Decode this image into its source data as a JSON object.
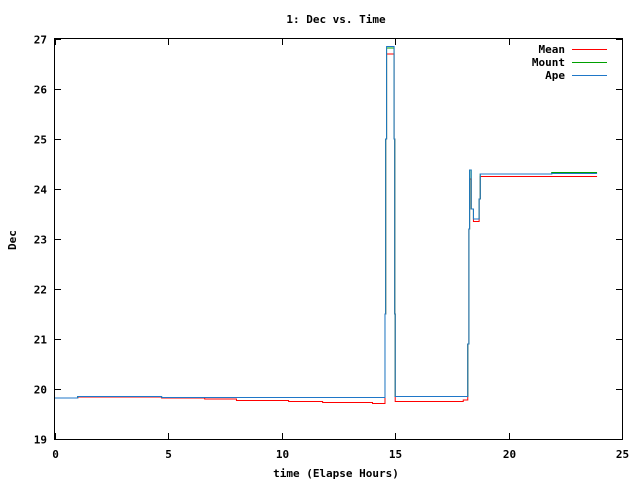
{
  "chart_data": {
    "type": "line",
    "title": "1: Dec vs. Time",
    "xlabel": "time (Elapse Hours)",
    "ylabel": "Dec",
    "xlim": [
      0,
      25
    ],
    "ylim": [
      19,
      27
    ],
    "x_ticks": [
      0,
      5,
      10,
      15,
      20,
      25
    ],
    "y_ticks": [
      19,
      20,
      21,
      22,
      23,
      24,
      25,
      26,
      27
    ],
    "x_tick_labels": [
      "0",
      "5",
      "10",
      "15",
      "20",
      "25"
    ],
    "y_tick_labels": [
      "19",
      "20",
      "21",
      "22",
      "23",
      "24",
      "25",
      "26",
      "27"
    ],
    "grid": false,
    "legend_position": "top-right",
    "series": [
      {
        "name": "Mean",
        "color": "#ff0000",
        "points": [
          [
            0,
            19.82
          ],
          [
            1.0,
            19.82
          ],
          [
            1.0,
            19.84
          ],
          [
            4.7,
            19.84
          ],
          [
            4.7,
            19.82
          ],
          [
            6.6,
            19.82
          ],
          [
            6.6,
            19.8
          ],
          [
            8.0,
            19.8
          ],
          [
            8.0,
            19.77
          ],
          [
            10.3,
            19.77
          ],
          [
            10.3,
            19.75
          ],
          [
            11.8,
            19.75
          ],
          [
            11.8,
            19.73
          ],
          [
            14.0,
            19.73
          ],
          [
            14.0,
            19.71
          ],
          [
            14.55,
            19.71
          ],
          [
            14.55,
            21.5
          ],
          [
            14.58,
            21.5
          ],
          [
            14.58,
            25.0
          ],
          [
            14.62,
            25.0
          ],
          [
            14.62,
            26.7
          ],
          [
            14.95,
            26.7
          ],
          [
            14.95,
            25.0
          ],
          [
            14.98,
            25.0
          ],
          [
            14.98,
            21.5
          ],
          [
            15.0,
            21.5
          ],
          [
            15.0,
            19.75
          ],
          [
            18.0,
            19.75
          ],
          [
            18.0,
            19.78
          ],
          [
            18.2,
            19.78
          ],
          [
            18.2,
            20.9
          ],
          [
            18.25,
            20.9
          ],
          [
            18.25,
            23.2
          ],
          [
            18.28,
            23.2
          ],
          [
            18.28,
            24.2
          ],
          [
            18.35,
            24.2
          ],
          [
            18.35,
            23.6
          ],
          [
            18.45,
            23.6
          ],
          [
            18.45,
            23.35
          ],
          [
            18.7,
            23.35
          ],
          [
            18.7,
            23.8
          ],
          [
            18.75,
            23.8
          ],
          [
            18.75,
            24.25
          ],
          [
            23.9,
            24.25
          ]
        ]
      },
      {
        "name": "Mount",
        "color": "#00a000",
        "points": [
          [
            0,
            19.82
          ],
          [
            1.0,
            19.82
          ],
          [
            1.0,
            19.85
          ],
          [
            4.7,
            19.85
          ],
          [
            4.7,
            19.83
          ],
          [
            14.55,
            19.83
          ],
          [
            14.55,
            21.5
          ],
          [
            14.58,
            21.5
          ],
          [
            14.58,
            25.0
          ],
          [
            14.62,
            25.0
          ],
          [
            14.62,
            26.82
          ],
          [
            14.95,
            26.82
          ],
          [
            14.95,
            25.0
          ],
          [
            14.98,
            25.0
          ],
          [
            14.98,
            21.5
          ],
          [
            15.0,
            21.5
          ],
          [
            15.0,
            19.85
          ],
          [
            18.2,
            19.85
          ],
          [
            18.2,
            20.9
          ],
          [
            18.25,
            20.9
          ],
          [
            18.25,
            23.2
          ],
          [
            18.28,
            23.2
          ],
          [
            18.28,
            24.38
          ],
          [
            18.35,
            24.38
          ],
          [
            18.35,
            23.6
          ],
          [
            18.45,
            23.6
          ],
          [
            18.45,
            23.4
          ],
          [
            18.7,
            23.4
          ],
          [
            18.7,
            23.8
          ],
          [
            18.75,
            23.8
          ],
          [
            18.75,
            24.3
          ],
          [
            21.9,
            24.3
          ],
          [
            21.9,
            24.33
          ],
          [
            23.9,
            24.33
          ]
        ]
      },
      {
        "name": "Ape",
        "color": "#1f77c8",
        "points": [
          [
            0,
            19.82
          ],
          [
            1.0,
            19.82
          ],
          [
            1.0,
            19.85
          ],
          [
            4.7,
            19.85
          ],
          [
            4.7,
            19.83
          ],
          [
            14.55,
            19.83
          ],
          [
            14.55,
            21.5
          ],
          [
            14.58,
            21.5
          ],
          [
            14.58,
            25.0
          ],
          [
            14.62,
            25.0
          ],
          [
            14.62,
            26.85
          ],
          [
            14.95,
            26.85
          ],
          [
            14.95,
            25.0
          ],
          [
            14.98,
            25.0
          ],
          [
            14.98,
            21.5
          ],
          [
            15.0,
            21.5
          ],
          [
            15.0,
            19.85
          ],
          [
            18.2,
            19.85
          ],
          [
            18.2,
            20.9
          ],
          [
            18.25,
            20.9
          ],
          [
            18.25,
            23.2
          ],
          [
            18.28,
            23.2
          ],
          [
            18.28,
            24.38
          ],
          [
            18.35,
            24.38
          ],
          [
            18.35,
            23.6
          ],
          [
            18.45,
            23.6
          ],
          [
            18.45,
            23.4
          ],
          [
            18.7,
            23.4
          ],
          [
            18.7,
            23.8
          ],
          [
            18.75,
            23.8
          ],
          [
            18.75,
            24.3
          ],
          [
            21.9,
            24.3
          ],
          [
            21.9,
            24.31
          ],
          [
            23.9,
            24.31
          ]
        ]
      }
    ]
  }
}
